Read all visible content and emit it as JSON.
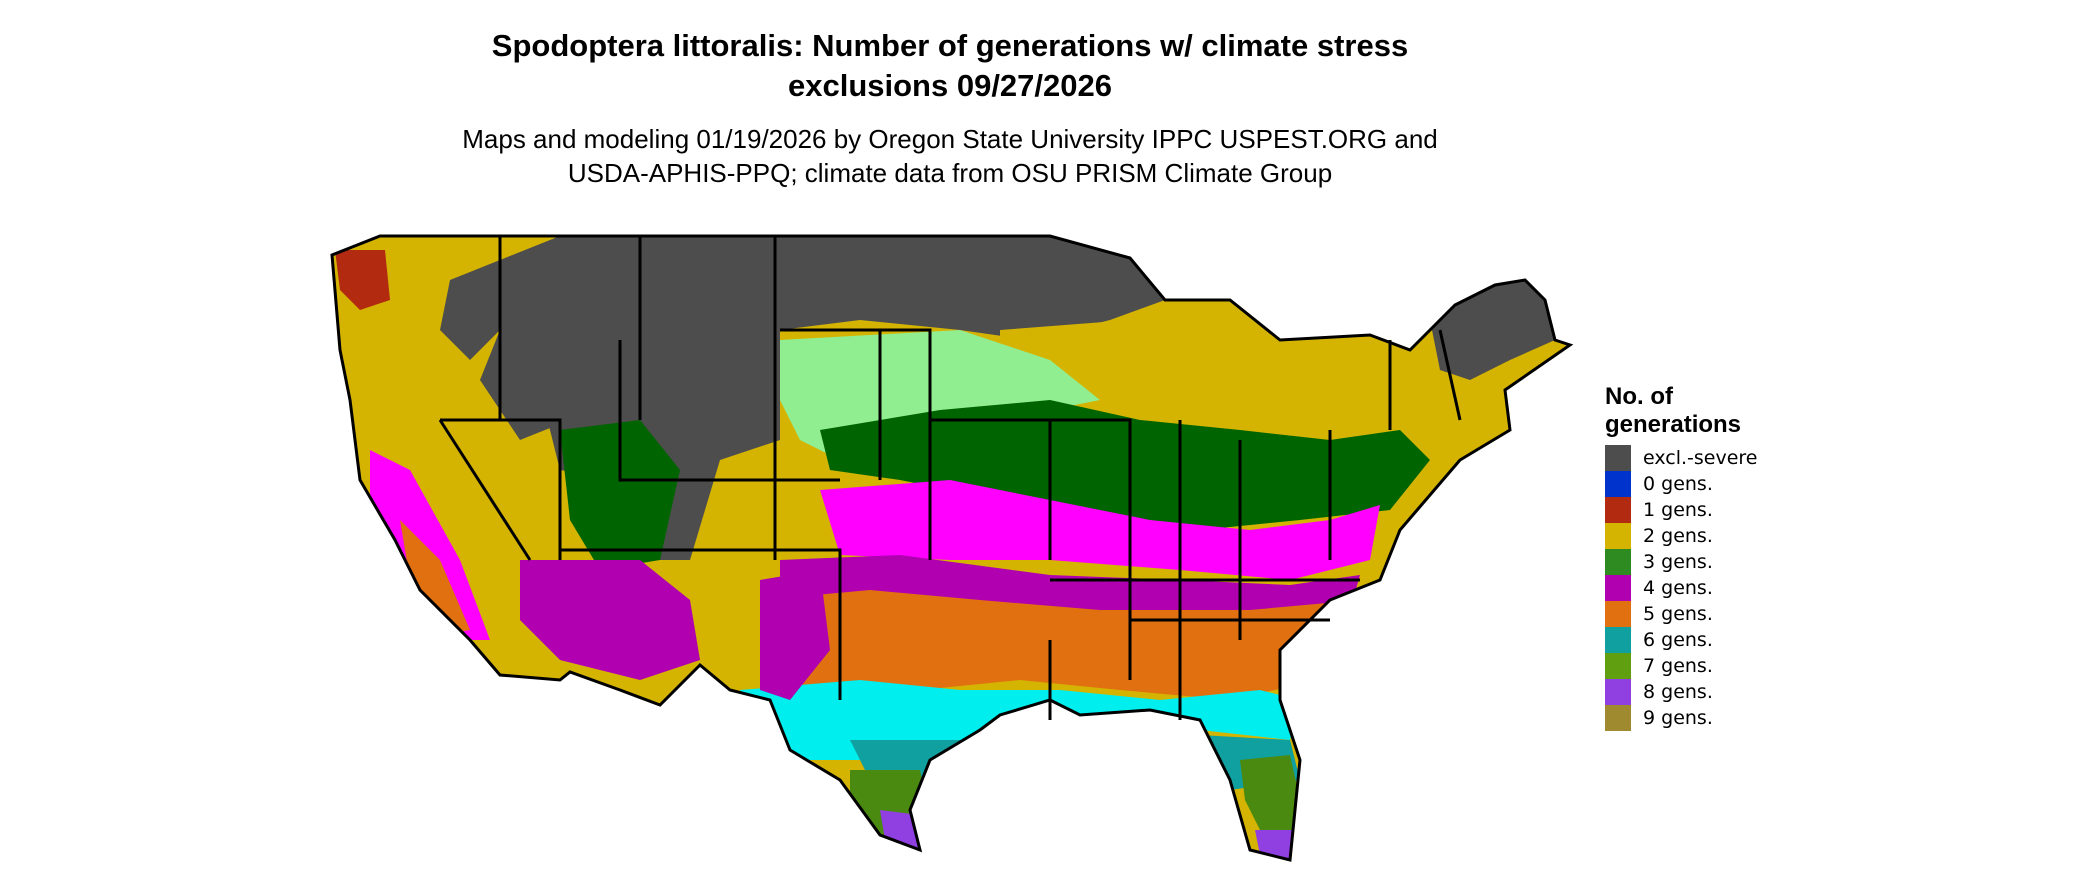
{
  "title_line1": "Spodoptera littoralis: Number of generations w/ climate stress",
  "title_line2": "exclusions 09/27/2026",
  "subtitle_line1": "Maps and modeling 01/19/2026 by Oregon State University IPPC USPEST.ORG and",
  "subtitle_line2": "USDA-APHIS-PPQ; climate data from OSU PRISM Climate Group",
  "legend": {
    "title_line1": "No. of",
    "title_line2": "generations",
    "items": [
      {
        "label": "excl.-severe",
        "color": "#4d4d4d"
      },
      {
        "label": "0 gens.",
        "color": "#0033cc"
      },
      {
        "label": "1 gens.",
        "color": "#b22a10"
      },
      {
        "label": "2 gens.",
        "color": "#d4b400"
      },
      {
        "label": "3 gens.",
        "color": "#2e8b22"
      },
      {
        "label": "4 gens.",
        "color": "#b000b0"
      },
      {
        "label": "5 gens.",
        "color": "#e07010"
      },
      {
        "label": "6 gens.",
        "color": "#10a0a0"
      },
      {
        "label": "7 gens.",
        "color": "#60a010"
      },
      {
        "label": "8 gens.",
        "color": "#9040e0"
      },
      {
        "label": "9 gens.",
        "color": "#a08a30"
      }
    ]
  },
  "map_colors": {
    "excl": "#4d4d4d",
    "gold": "#d4b400",
    "light_green": "#90ee90",
    "dark_green": "#006400",
    "magenta": "#ff00ff",
    "purple": "#b000b0",
    "orange": "#e07010",
    "cyan": "#00eeee",
    "teal": "#10a0a0",
    "olive_green": "#4a8a10",
    "lavender": "#9040e0",
    "red": "#b22a10"
  }
}
